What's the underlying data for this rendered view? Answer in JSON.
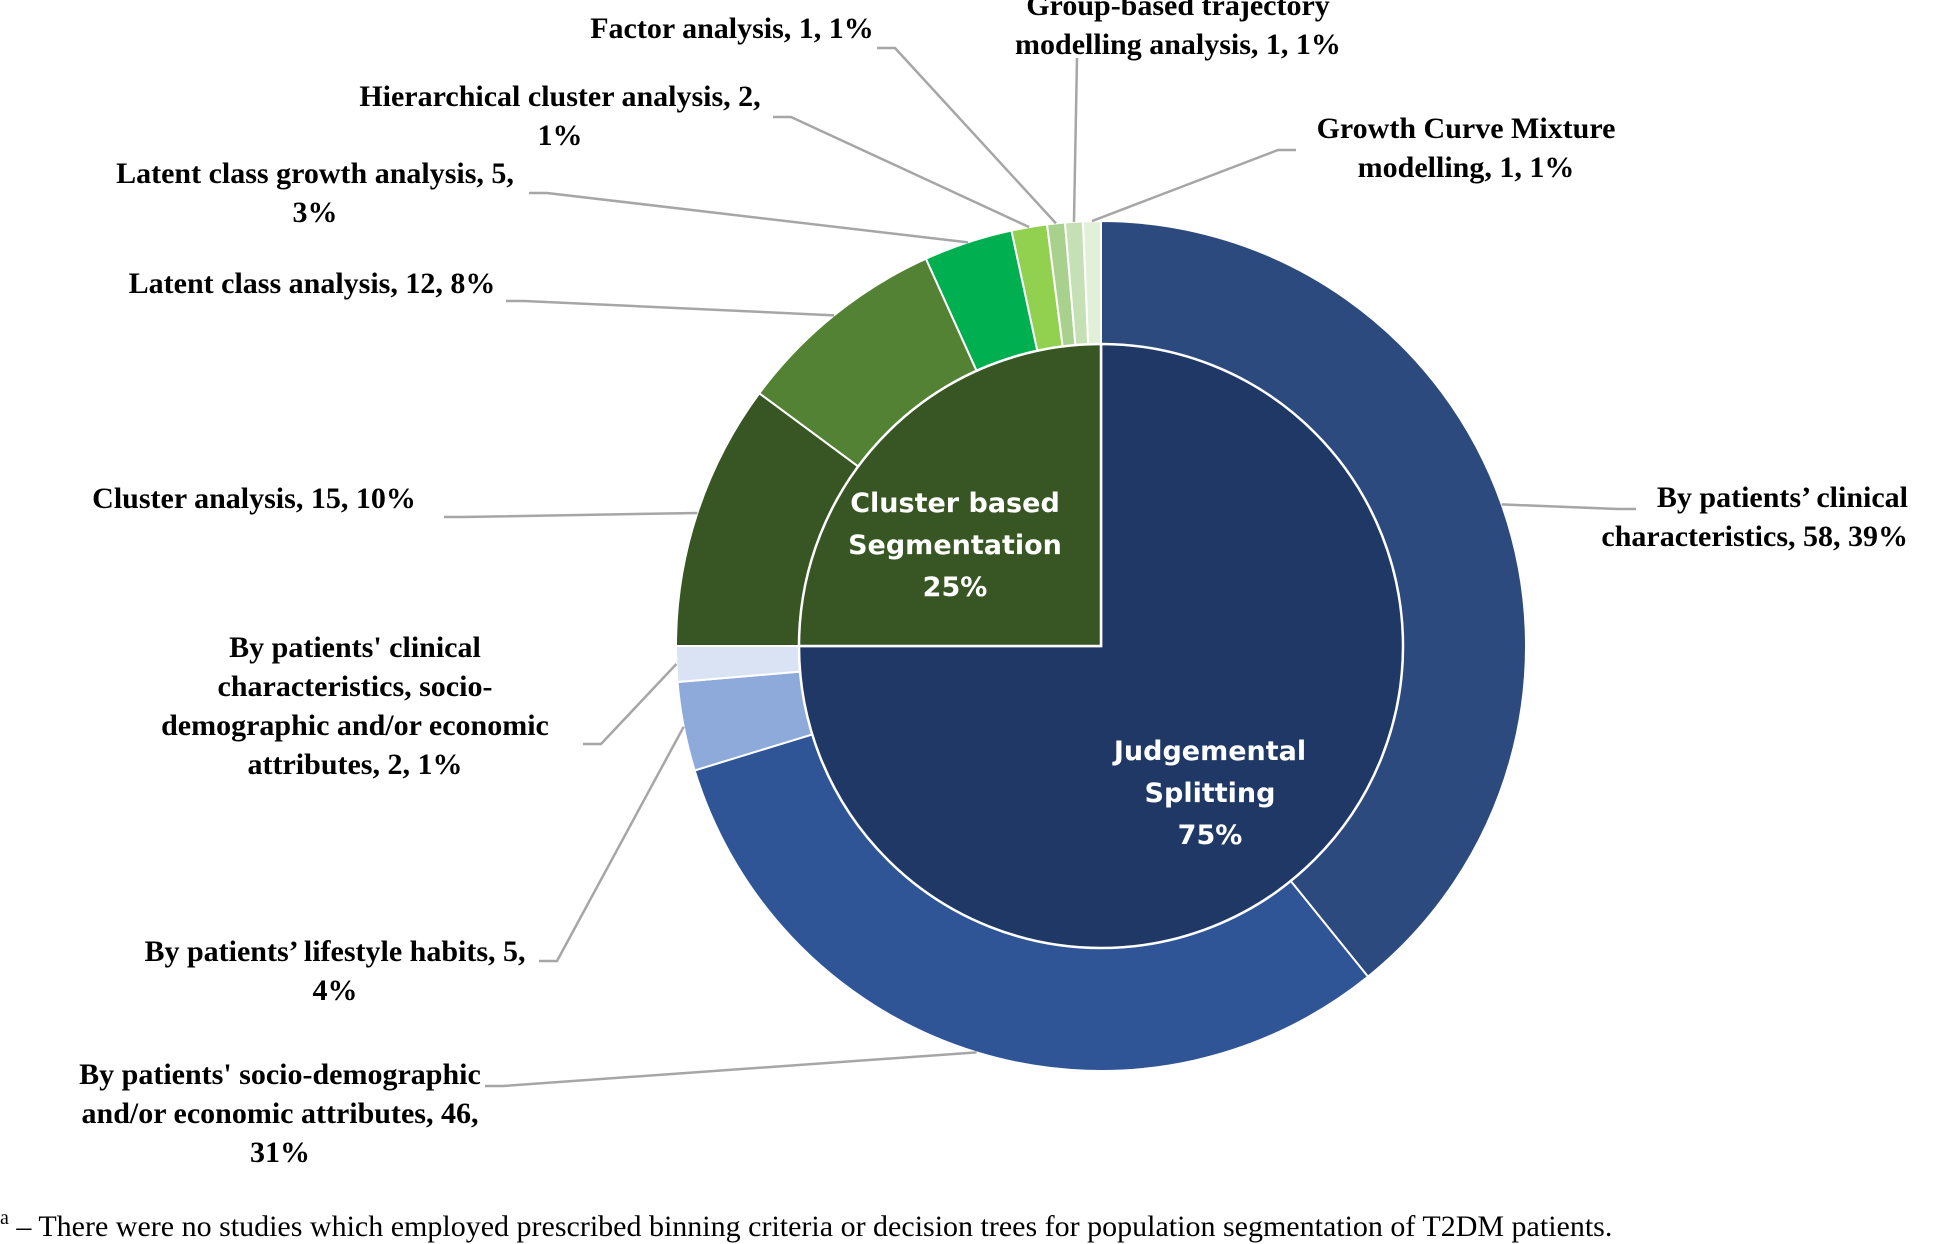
{
  "chart_data": {
    "type": "pie",
    "subtype": "nested-donut",
    "inner_ring": [
      {
        "name": "Judgemental Splitting",
        "label_lines": [
          "Judgemental",
          "Splitting",
          "75%"
        ],
        "percent": 75,
        "color": "#1f3866"
      },
      {
        "name": "Cluster based Segmentation",
        "label_lines": [
          "Cluster based",
          "Segmentation",
          "25%"
        ],
        "percent": 25,
        "color": "#375623"
      }
    ],
    "outer_ring": [
      {
        "name": "By patients’ clinical characteristics",
        "count": 58,
        "percent": 39,
        "color": "#2c4a7e",
        "label_lines": [
          "By patients’ clinical",
          "characteristics, 58, 39%"
        ]
      },
      {
        "name": "By patients' socio-demographic and/or economic attributes",
        "count": 46,
        "percent": 31,
        "color": "#2f5597",
        "label_lines": [
          "By patients' socio-demographic",
          "and/or economic attributes, 46,",
          "31%"
        ]
      },
      {
        "name": "By patients’ lifestyle habits",
        "count": 5,
        "percent": 4,
        "color": "#8eaadb",
        "label_lines": [
          "By patients’ lifestyle habits, 5,",
          "4%"
        ]
      },
      {
        "name": "By patients' clinical characteristics, socio-demographic and/or economic attributes",
        "count": 2,
        "percent": 1,
        "color": "#dae3f3",
        "label_lines": [
          "By patients' clinical",
          "characteristics, socio-",
          "demographic and/or economic",
          "attributes, 2, 1%"
        ]
      },
      {
        "name": "Cluster analysis",
        "count": 15,
        "percent": 10,
        "color": "#375623",
        "label_lines": [
          "Cluster analysis, 15, 10%"
        ]
      },
      {
        "name": "Latent class analysis",
        "count": 12,
        "percent": 8,
        "color": "#548235",
        "label_lines": [
          "Latent class analysis, 12, 8%"
        ]
      },
      {
        "name": "Latent class growth analysis",
        "count": 5,
        "percent": 3,
        "color": "#00b050",
        "label_lines": [
          "Latent class growth analysis, 5,",
          "3%"
        ]
      },
      {
        "name": "Hierarchical cluster analysis",
        "count": 2,
        "percent": 1,
        "color": "#92d050",
        "label_lines": [
          "Hierarchical cluster analysis, 2,",
          "1%"
        ]
      },
      {
        "name": "Factor analysis",
        "count": 1,
        "percent": 1,
        "color": "#a9d18e",
        "label_lines": [
          "Factor analysis, 1, 1%"
        ]
      },
      {
        "name": "Group-based trajectory modelling analysis",
        "count": 1,
        "percent": 1,
        "color": "#c5e0b4",
        "label_lines": [
          "Group-based trajectory",
          "modelling analysis, 1, 1%"
        ]
      },
      {
        "name": "Growth Curve Mixture modelling",
        "count": 1,
        "percent": 1,
        "color": "#e2f0d9",
        "label_lines": [
          "Growth Curve Mixture",
          "modelling, 1, 1%"
        ]
      }
    ],
    "footnote": {
      "marker": "a",
      "text": " – There were no studies which employed prescribed binning criteria or decision trees for population segmentation of T2DM patients."
    }
  }
}
